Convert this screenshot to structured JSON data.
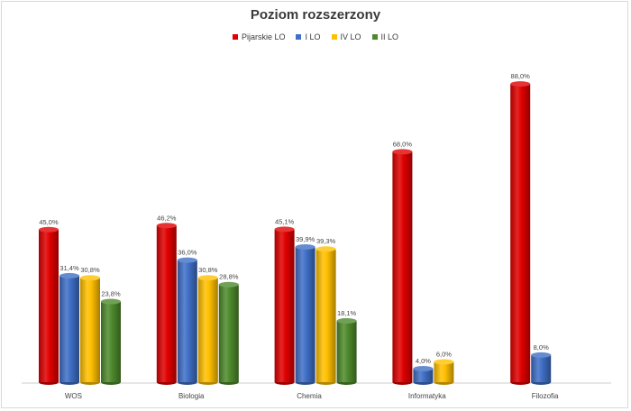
{
  "chart_data": {
    "type": "bar",
    "title": "Poziom rozszerzony",
    "categories": [
      "WOS",
      "Biologia",
      "Chemia",
      "Informatyka",
      "Filozofia"
    ],
    "series": [
      {
        "name": "Pijarskie LO",
        "color": "#e00000",
        "values": [
          45.0,
          46.2,
          45.1,
          68.0,
          88.0
        ],
        "labels": [
          "45,0%",
          "46,2%",
          "45,1%",
          "68,0%",
          "88,0%"
        ]
      },
      {
        "name": "I LO",
        "color": "#3f6fc6",
        "values": [
          31.4,
          36.0,
          39.9,
          4.0,
          8.0
        ],
        "labels": [
          "31,4%",
          "36,0%",
          "39,9%",
          "4,0%",
          "8,0%"
        ]
      },
      {
        "name": "IV LO",
        "color": "#ffc000",
        "values": [
          30.8,
          30.8,
          39.3,
          6.0,
          null
        ],
        "labels": [
          "30,8%",
          "30,8%",
          "39,3%",
          "6,0%",
          ""
        ]
      },
      {
        "name": "II LO",
        "color": "#4e8a2c",
        "values": [
          23.8,
          28.8,
          18.1,
          null,
          null
        ],
        "labels": [
          "23,8%",
          "28,8%",
          "18,1%",
          "",
          ""
        ]
      }
    ],
    "ylim": [
      0,
      100
    ],
    "grid": false,
    "legend_position": "top"
  }
}
